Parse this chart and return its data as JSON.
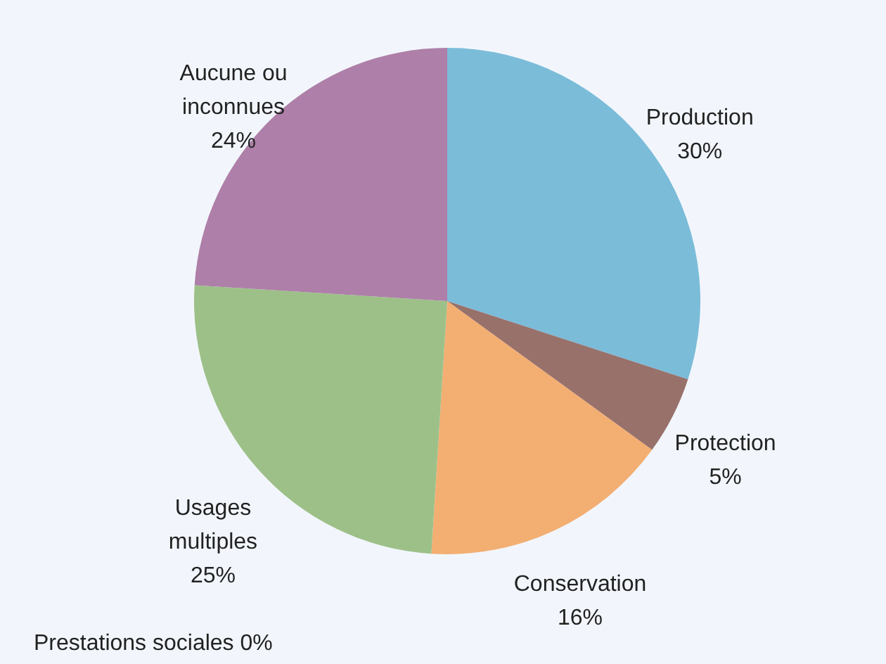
{
  "chart_data": {
    "type": "pie",
    "categories": [
      "Production",
      "Protection",
      "Conservation",
      "Usages multiples",
      "Aucune ou inconnues"
    ],
    "values": [
      30,
      5,
      16,
      25,
      24
    ],
    "value_labels": [
      "30%",
      "5%",
      "16%",
      "25%",
      "24%"
    ],
    "colors": [
      "#7bbcd9",
      "#98716b",
      "#f3ae72",
      "#9dc088",
      "#ae7fa8"
    ],
    "annotations": [
      "Prestations sociales 0%"
    ]
  }
}
